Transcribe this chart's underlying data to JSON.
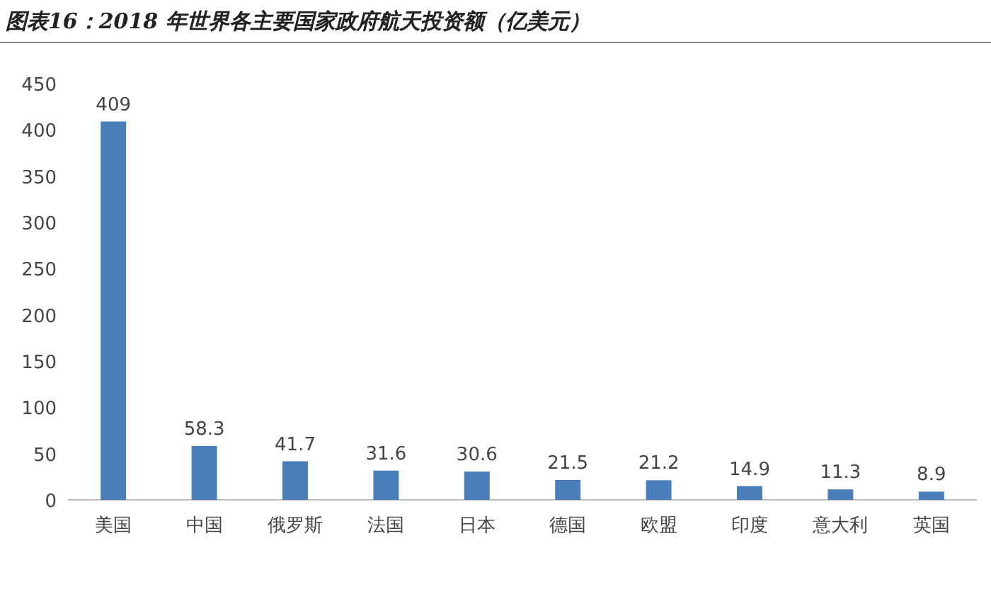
{
  "chart_data": {
    "type": "bar",
    "title": "图表16：2018 年世界各主要国家政府航天投资额（亿美元）",
    "categories": [
      "美国",
      "中国",
      "俄罗斯",
      "法国",
      "日本",
      "德国",
      "欧盟",
      "印度",
      "意大利",
      "英国"
    ],
    "values": [
      409,
      58.3,
      41.7,
      31.6,
      30.6,
      21.5,
      21.2,
      14.9,
      11.3,
      8.9
    ],
    "color": "#4a7ebb",
    "ylim": [
      0,
      450
    ],
    "yticks": [
      0,
      50,
      100,
      150,
      200,
      250,
      300,
      350,
      400,
      450
    ],
    "grid": false,
    "data_labels": true
  }
}
